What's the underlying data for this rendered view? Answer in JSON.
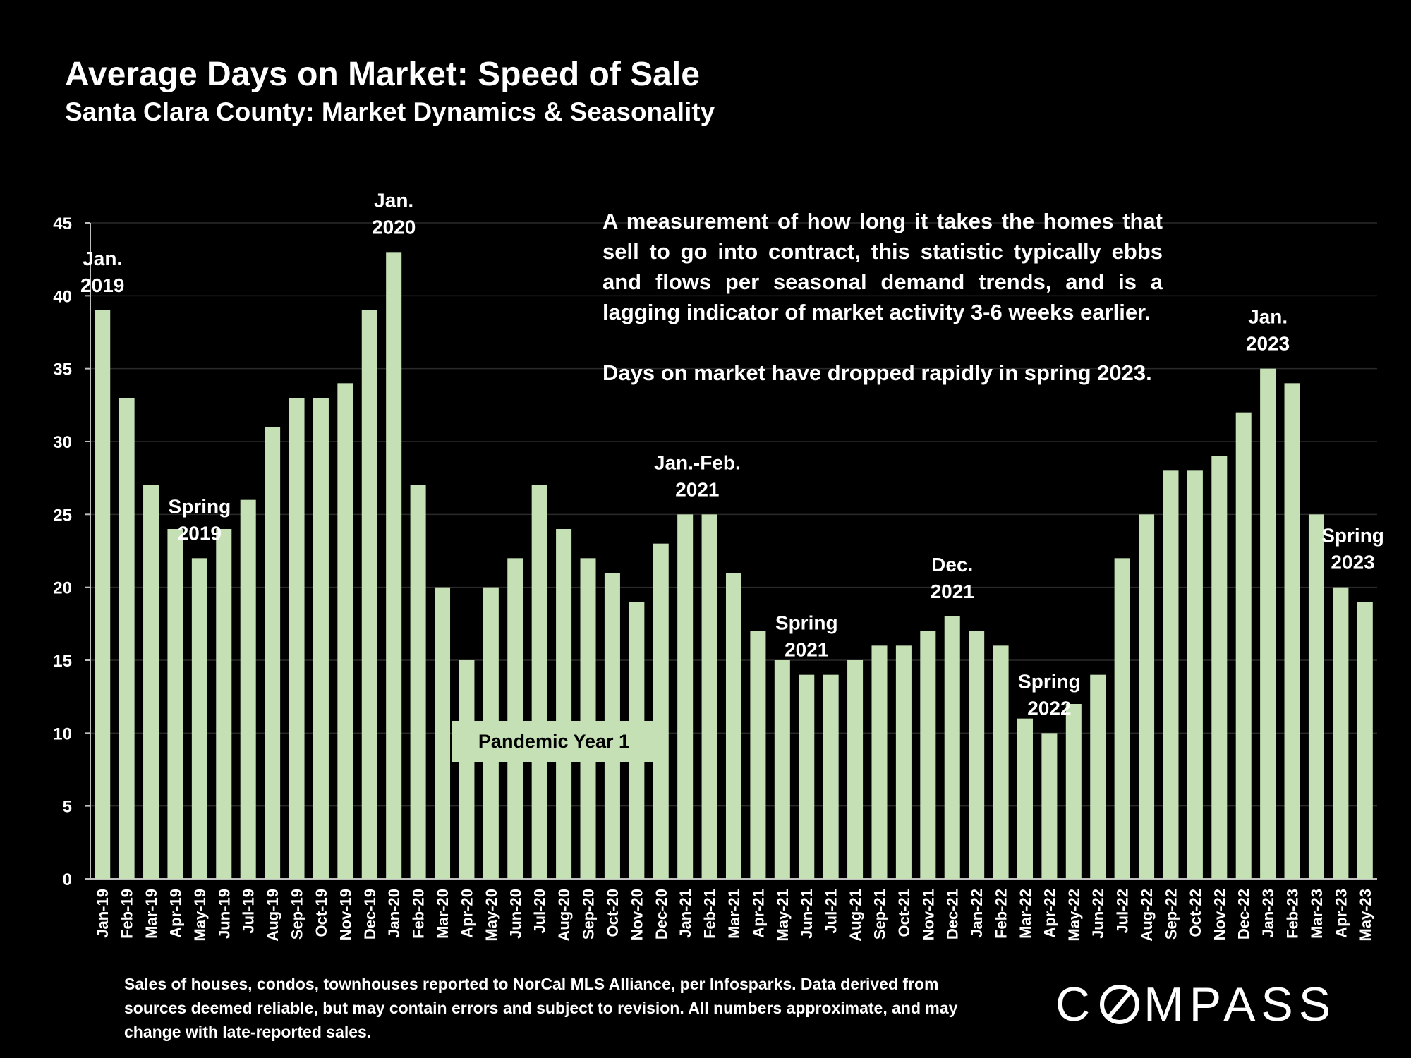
{
  "header": {
    "title": "Average Days on Market: Speed of Sale",
    "subtitle": "Santa Clara County: Market Dynamics & Seasonality"
  },
  "annotation": {
    "paragraph1": "A measurement of how long it takes the homes that sell to go into contract, this statistic typically ebbs and flows per seasonal demand trends, and is a lagging indicator of market activity 3-6 weeks earlier.",
    "paragraph2": "Days on market have dropped rapidly in spring 2023."
  },
  "pandemic_label": "Pandemic Year 1",
  "footnote": "Sales of houses, condos, townhouses reported to NorCal MLS Alliance, per Infosparks. Data derived from sources deemed reliable, but may contain errors and subject to revision. All numbers approximate, and may change with late-reported sales.",
  "logo": {
    "before": "C",
    "after": "MPASS"
  },
  "colors": {
    "background": "#000000",
    "bar": "#c5e0b4",
    "text": "#ffffff",
    "grid": "#2a2a2a"
  },
  "chart_data": {
    "type": "bar",
    "title": "Average Days on Market: Speed of Sale",
    "subtitle": "Santa Clara County: Market Dynamics & Seasonality",
    "xlabel": "",
    "ylabel": "",
    "ylim": [
      0,
      45
    ],
    "yticks": [
      0,
      5,
      10,
      15,
      20,
      25,
      30,
      35,
      40,
      45
    ],
    "grid": true,
    "categories": [
      "Jan-19",
      "Feb-19",
      "Mar-19",
      "Apr-19",
      "May-19",
      "Jun-19",
      "Jul-19",
      "Aug-19",
      "Sep-19",
      "Oct-19",
      "Nov-19",
      "Dec-19",
      "Jan-20",
      "Feb-20",
      "Mar-20",
      "Apr-20",
      "May-20",
      "Jun-20",
      "Jul-20",
      "Aug-20",
      "Sep-20",
      "Oct-20",
      "Nov-20",
      "Dec-20",
      "Jan-21",
      "Feb-21",
      "Mar-21",
      "Apr-21",
      "May-21",
      "Jun-21",
      "Jul-21",
      "Aug-21",
      "Sep-21",
      "Oct-21",
      "Nov-21",
      "Dec-21",
      "Jan-22",
      "Feb-22",
      "Mar-22",
      "Apr-22",
      "May-22",
      "Jun-22",
      "Jul-22",
      "Aug-22",
      "Sep-22",
      "Oct-22",
      "Nov-22",
      "Dec-22",
      "Jan-23",
      "Feb-23",
      "Mar-23",
      "Apr-23",
      "May-23"
    ],
    "values": [
      39,
      33,
      27,
      24,
      22,
      24,
      26,
      31,
      33,
      33,
      34,
      39,
      43,
      27,
      20,
      15,
      20,
      22,
      27,
      24,
      22,
      21,
      19,
      23,
      25,
      25,
      21,
      17,
      15,
      14,
      14,
      15,
      16,
      16,
      17,
      18,
      17,
      16,
      11,
      10,
      12,
      14,
      22,
      25,
      28,
      28,
      29,
      32,
      35,
      34,
      25,
      20,
      19
    ],
    "annotations": [
      {
        "lines": [
          "Jan.",
          "2019"
        ],
        "index": 0
      },
      {
        "lines": [
          "Spring",
          "2019"
        ],
        "index": 4
      },
      {
        "lines": [
          "Jan.",
          "2020"
        ],
        "index": 12
      },
      {
        "lines": [
          "Jan.-Feb.",
          "2021"
        ],
        "index": 24.5
      },
      {
        "lines": [
          "Spring",
          "2021"
        ],
        "index": 29
      },
      {
        "lines": [
          "Dec.",
          "2021"
        ],
        "index": 35
      },
      {
        "lines": [
          "Spring",
          "2022"
        ],
        "index": 39
      },
      {
        "lines": [
          "Jan.",
          "2023"
        ],
        "index": 48
      },
      {
        "lines": [
          "Spring",
          "2023"
        ],
        "index": 51.5
      }
    ]
  }
}
